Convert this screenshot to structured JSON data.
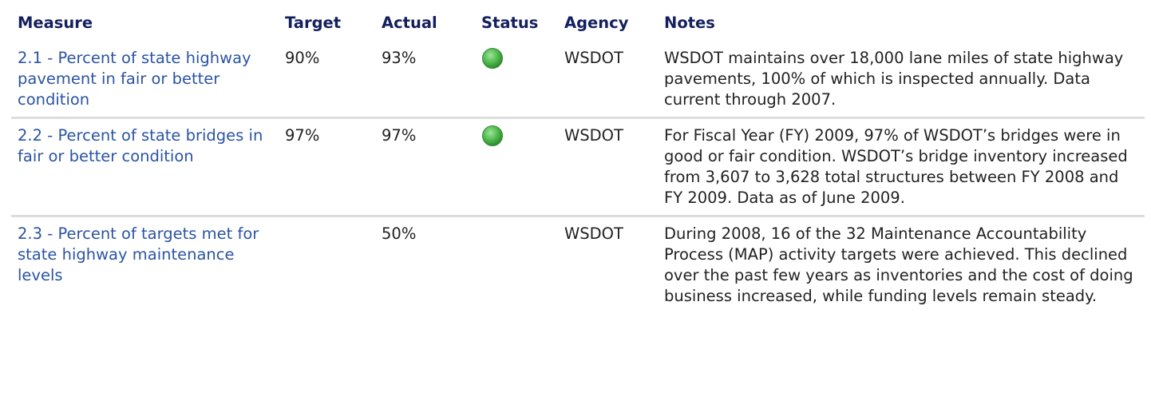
{
  "table": {
    "header": [
      "Measure",
      "Target",
      "Actual",
      "Status",
      "Agency",
      "Notes"
    ],
    "rows": [
      {
        "measure": "2.1 - Percent of state highway pavement in fair or better condition",
        "target": "90%",
        "actual": "93%",
        "status": "green",
        "agency": "WSDOT",
        "notes": "WSDOT maintains over 18,000 lane miles of state highway pavements, 100% of which is inspected annually. Data current through 2007."
      },
      {
        "measure": "2.2 - Percent of state bridges in fair or better condition",
        "target": "97%",
        "actual": "97%",
        "status": "green",
        "agency": "WSDOT",
        "notes": "For Fiscal Year (FY) 2009, 97% of WSDOT’s bridges were in good or fair condition. WSDOT’s bridge inventory increased from 3,607 to 3,628 total structures between FY 2008 and FY 2009. Data as of June 2009."
      },
      {
        "measure": "2.3 - Percent of targets met for state highway maintenance levels",
        "target": "",
        "actual": "50%",
        "status": null,
        "agency": "WSDOT",
        "notes": "During 2008, 16 of the 32 Maintenance Accountability Process (MAP) activity targets were achieved. This declined over the past few years as inventories and the cost of doing business increased, while funding levels remain steady."
      }
    ]
  }
}
